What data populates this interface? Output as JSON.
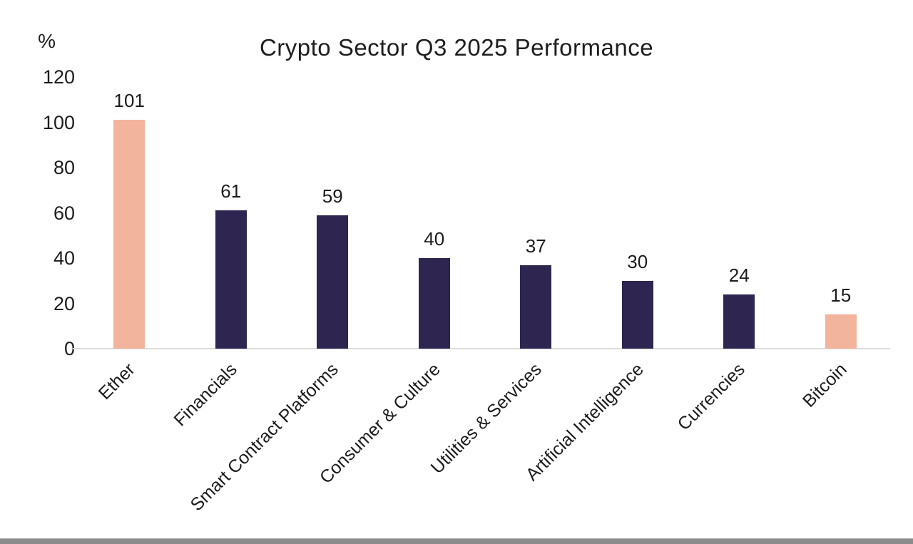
{
  "chart_data": {
    "type": "bar",
    "title": "Crypto Sector Q3 2025 Performance",
    "y_axis_unit_label": "%",
    "categories": [
      "Ether",
      "Financials",
      "Smart Contract Platforms",
      "Consumer & Culture",
      "Utilities & Services",
      "Artificial Intelligence",
      "Currencies",
      "Bitcoin"
    ],
    "values": [
      101,
      61,
      59,
      40,
      37,
      30,
      24,
      15
    ],
    "bar_colors": [
      "#F2B49C",
      "#2E2651",
      "#2E2651",
      "#2E2651",
      "#2E2651",
      "#2E2651",
      "#2E2651",
      "#F2B49C"
    ],
    "highlight_color": "#F2B49C",
    "default_color": "#2E2651",
    "yticks": [
      0,
      20,
      40,
      60,
      80,
      100,
      120
    ],
    "ylim": [
      0,
      120
    ],
    "grid": false,
    "value_labels_shown": true,
    "x_label_rotation_deg": 45,
    "xlabel": "",
    "ylabel": "%",
    "legend": "none"
  },
  "style": {
    "text_color": "#1e1e1e",
    "axis_line_color": "#dcdcdc",
    "bottom_edge_color": "#8c8c8c"
  }
}
